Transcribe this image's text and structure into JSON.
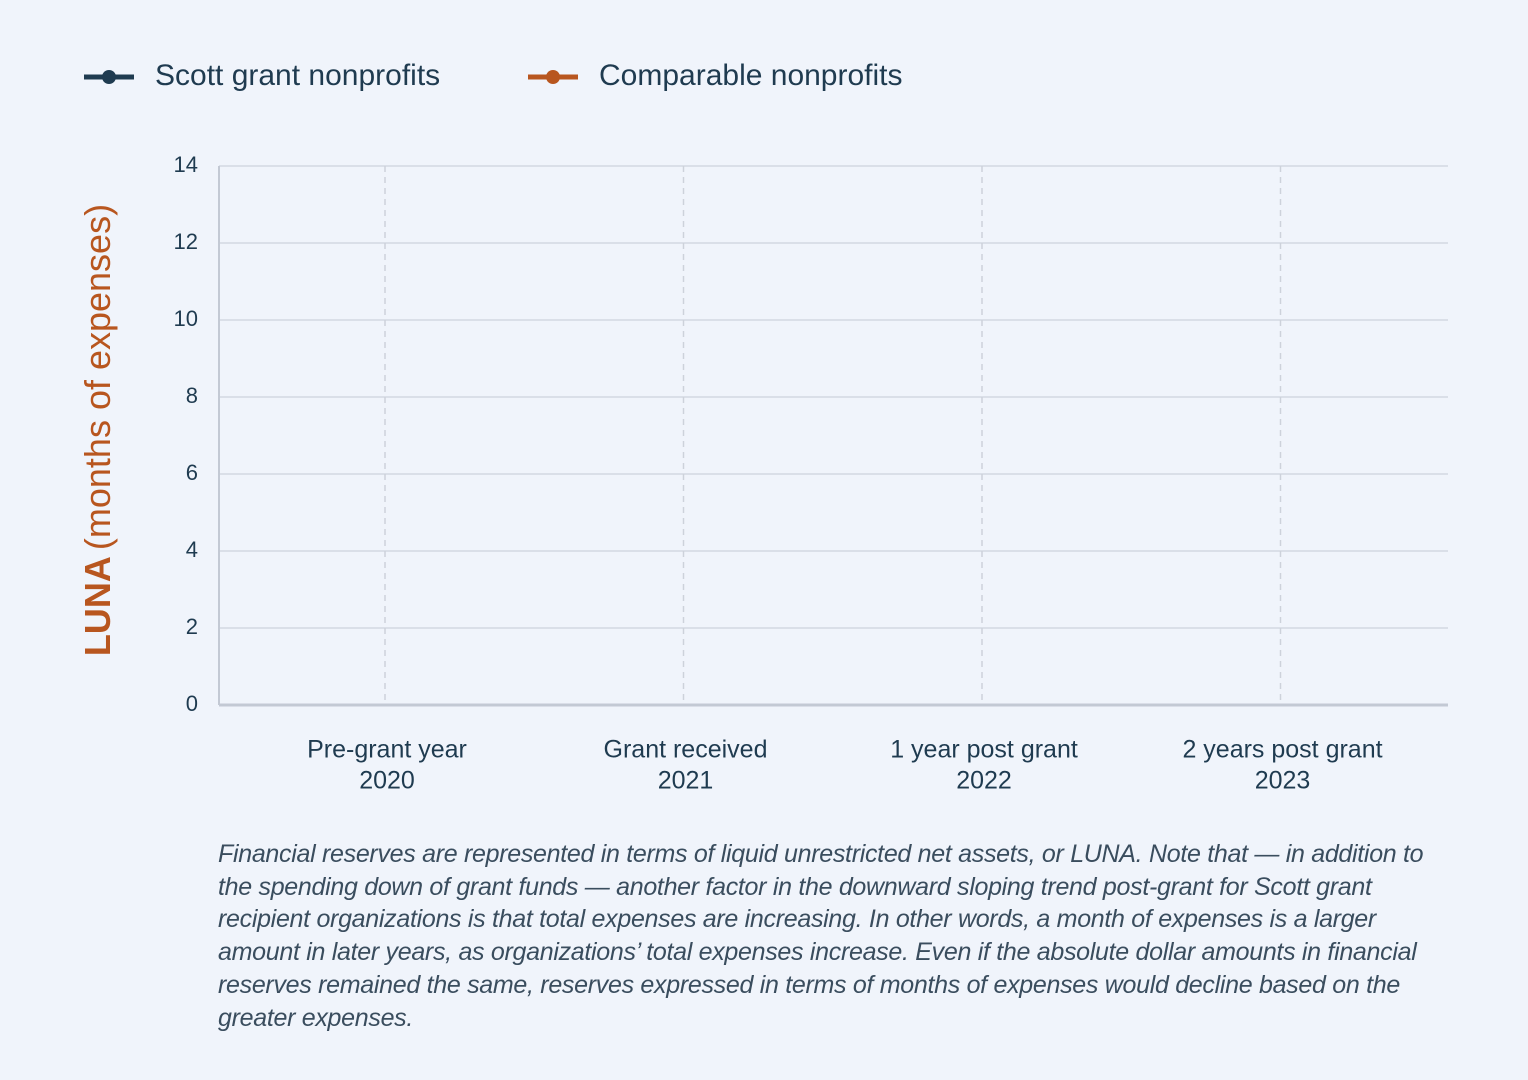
{
  "chart_data": {
    "type": "line",
    "categories": [
      "Pre-grant year",
      "Grant received",
      "1 year post grant",
      "2 years post grant"
    ],
    "category_sublabels": [
      "2020",
      "2021",
      "2022",
      "2023"
    ],
    "series": [
      {
        "name": "Scott grant nonprofits",
        "color": "#1f3b50",
        "values": [
          null,
          null,
          null,
          null
        ]
      },
      {
        "name": "Comparable nonprofits",
        "color": "#b8561f",
        "values": [
          null,
          null,
          null,
          null
        ]
      }
    ],
    "ylabel": {
      "emphasis": "LUNA",
      "text": "(months of expenses)"
    },
    "ylim": [
      0,
      14
    ],
    "yticks": [
      0,
      2,
      4,
      6,
      8,
      10,
      12,
      14
    ],
    "grid": true,
    "note": "Financial reserves are represented in terms of liquid unrestricted net assets, or LUNA. Note that — in addition to the spending down of grant funds — another factor in the downward sloping trend post-grant for Scott grant recipient organizations is that total expenses are increasing. In other words, a month of expenses is a larger amount in later years, as organizations’ total expenses increase. Even if the absolute dollar amounts in financial reserves remained the same, reserves expressed in terms of months of expenses would decline based on the greater expenses."
  }
}
